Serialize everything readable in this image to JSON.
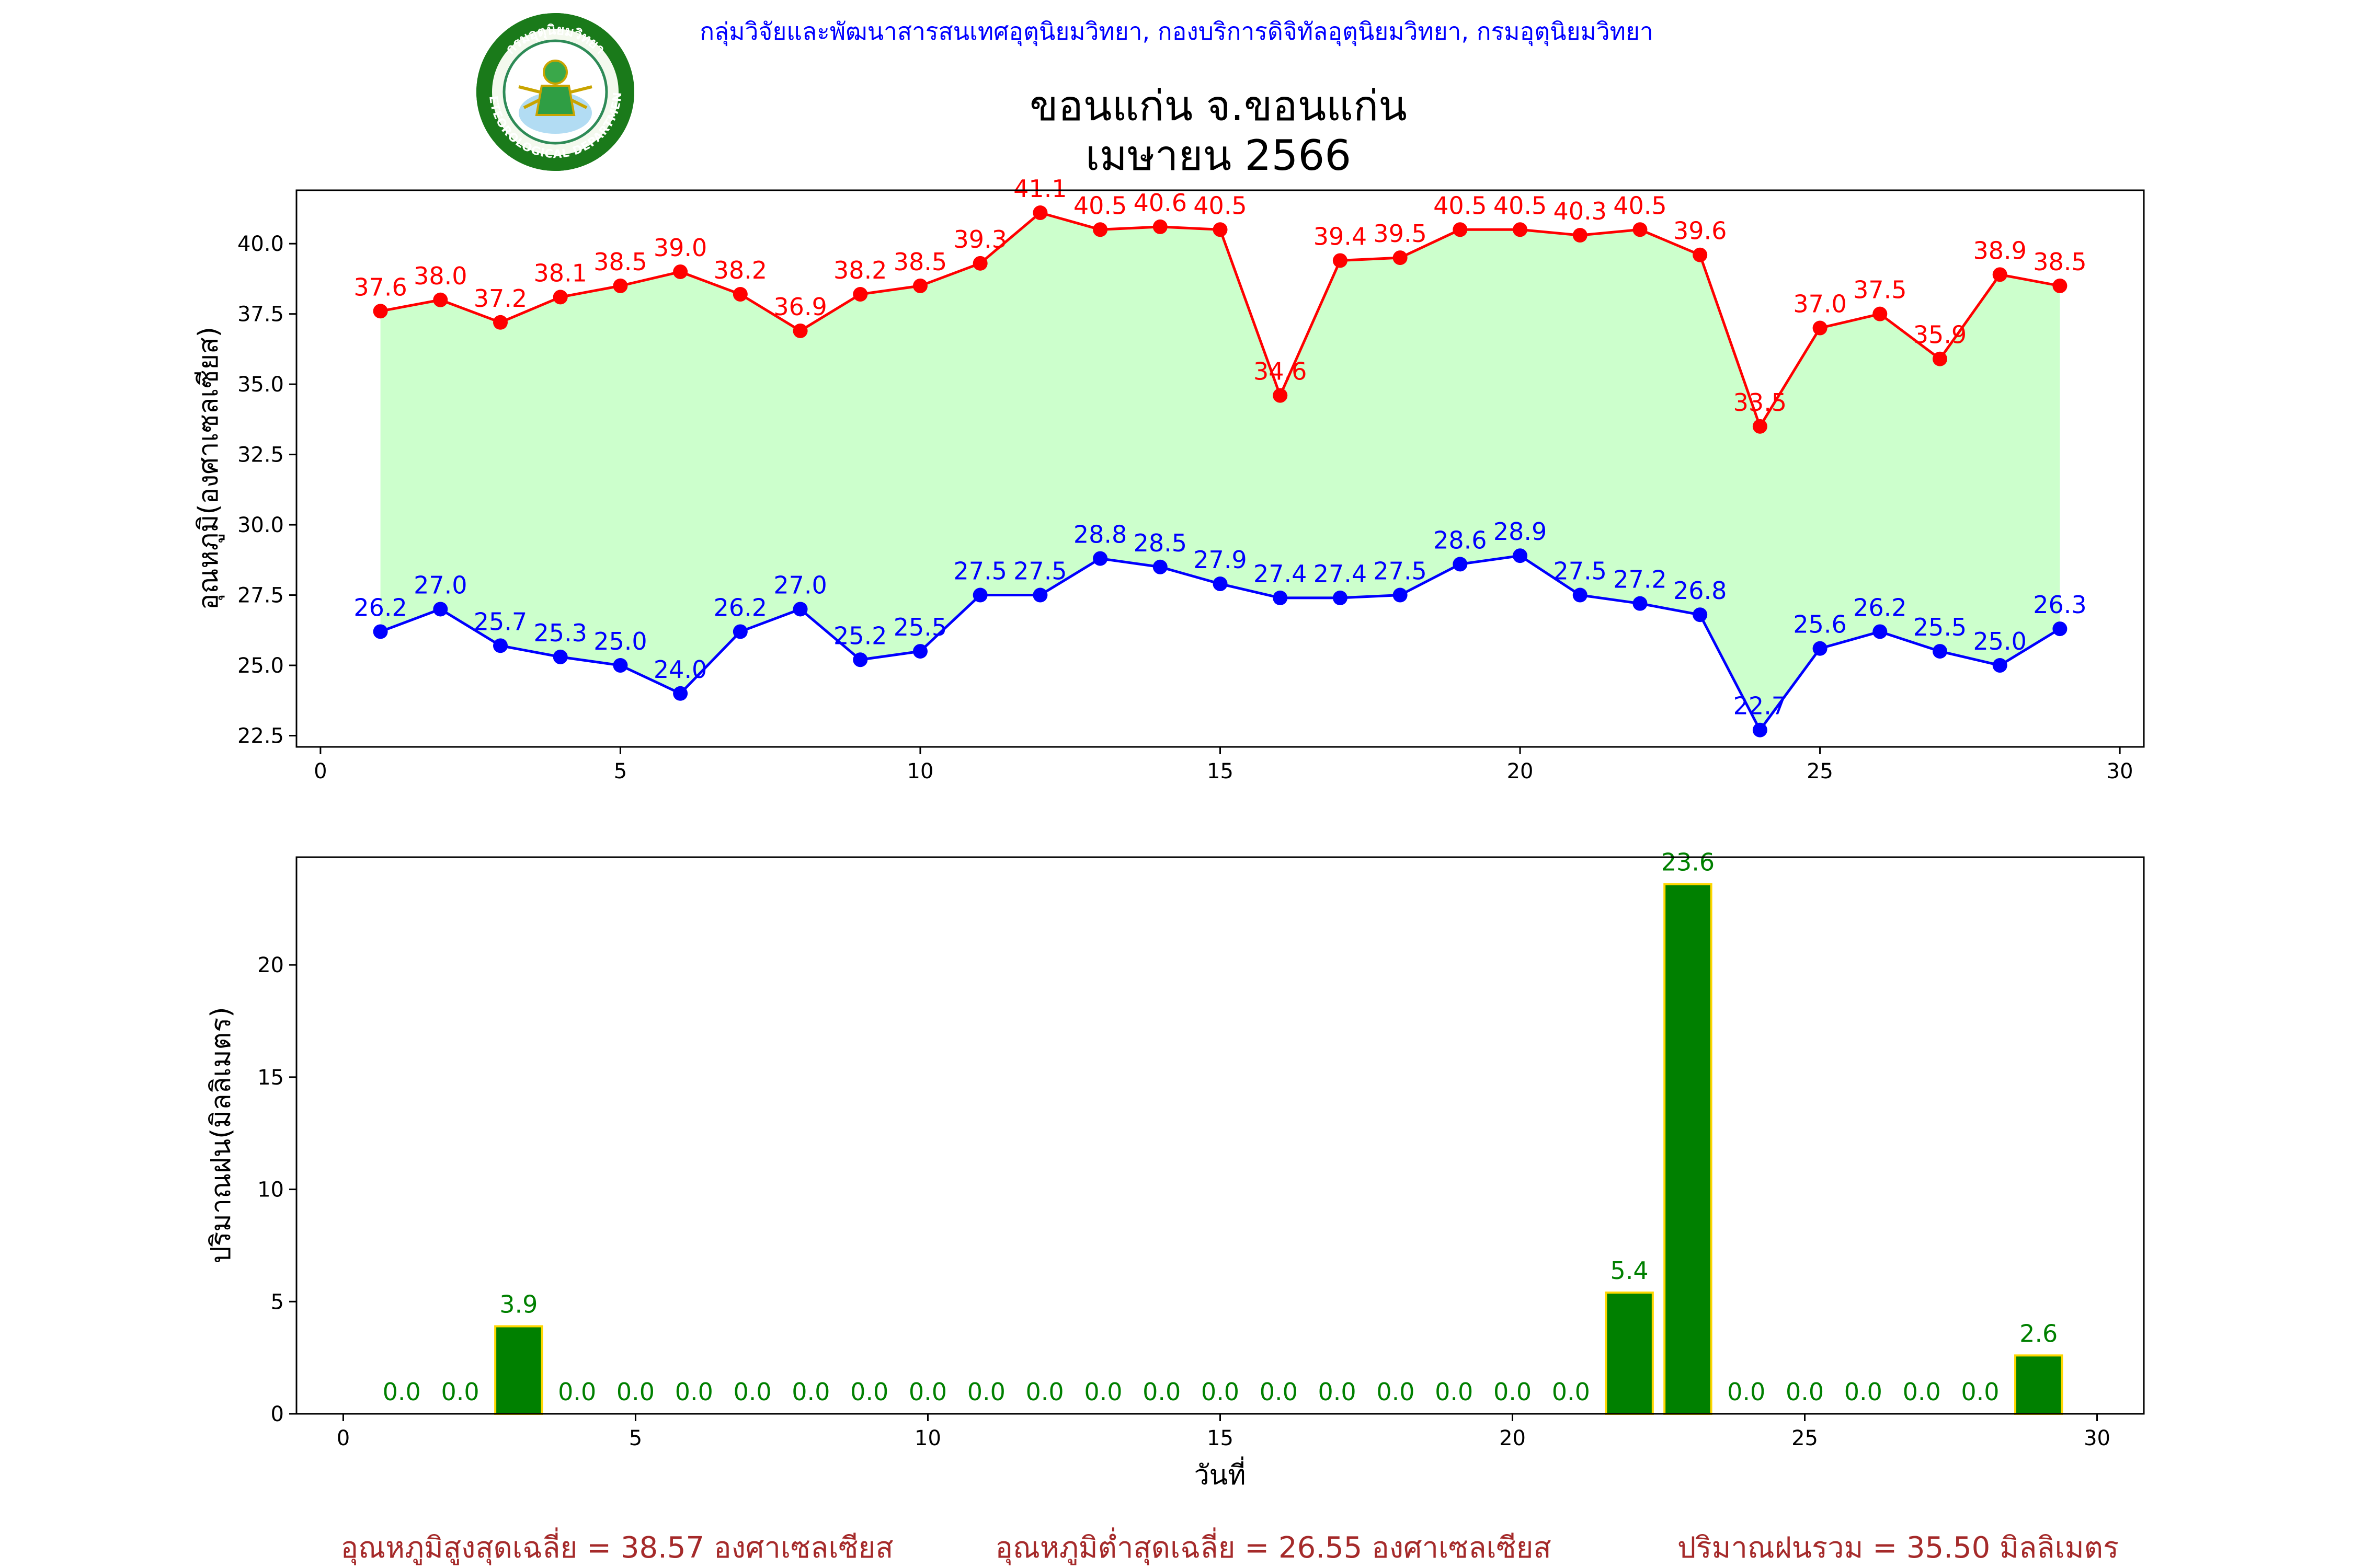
{
  "header": {
    "agency_line": "กลุ่มวิจัยและพัฒนาสารสนเทศอุตุนิยมวิทยา, กองบริการดิจิทัลอุตุนิยมวิทยา, กรมอุตุนิยมวิทยา",
    "title_line1": "ขอนแก่น จ.ขอนแก่น",
    "title_line2": "เมษายน 2566",
    "logo": {
      "inner_text": "กรมอุตุนิยมวิทยา",
      "ring_text": "METEOROLOGICAL DEPARTMENT"
    }
  },
  "colors": {
    "max_temp": "#ff0000",
    "min_temp": "#0000ff",
    "temp_fill": "#ccffcc",
    "rain_bar": "#008000",
    "rain_edge": "#ffd700",
    "rain_label": "#008000",
    "agency_text": "#0000ff",
    "summary_text": "#a52a2a"
  },
  "chart_data": [
    {
      "type": "line",
      "ylabel": "อุณหภูมิ(องศาเซลเซียส)",
      "xlabel": "",
      "x": [
        1,
        2,
        3,
        4,
        5,
        6,
        7,
        8,
        9,
        10,
        11,
        12,
        13,
        14,
        15,
        16,
        17,
        18,
        19,
        20,
        21,
        22,
        23,
        24,
        25,
        26,
        27,
        28,
        29
      ],
      "series": [
        {
          "role": "max",
          "values": [
            37.6,
            38.0,
            37.2,
            38.1,
            38.5,
            39.0,
            38.2,
            36.9,
            38.2,
            38.5,
            39.3,
            41.1,
            40.5,
            40.6,
            40.5,
            34.6,
            39.4,
            39.5,
            40.5,
            40.5,
            40.3,
            40.5,
            39.6,
            33.5,
            37.0,
            37.5,
            35.9,
            38.9,
            38.5
          ]
        },
        {
          "role": "min",
          "values": [
            26.2,
            27.0,
            25.7,
            25.3,
            25.0,
            24.0,
            26.2,
            27.0,
            25.2,
            25.5,
            27.5,
            27.5,
            28.8,
            28.5,
            27.9,
            27.4,
            27.4,
            27.5,
            28.6,
            28.9,
            27.5,
            27.2,
            26.8,
            22.7,
            25.6,
            26.2,
            25.5,
            25.0,
            26.3
          ]
        }
      ],
      "xlim": [
        -0.4,
        30.4
      ],
      "ylim": [
        22.1,
        41.9
      ],
      "xticks": [
        0,
        5,
        10,
        15,
        20,
        25,
        30
      ],
      "yticks": [
        22.5,
        25.0,
        27.5,
        30.0,
        32.5,
        35.0,
        37.5,
        40.0
      ],
      "fill_between": true,
      "grid": false,
      "legend": "none"
    },
    {
      "type": "bar",
      "ylabel": "ปริมาณฝน(มิลลิเมตร)",
      "xlabel": "วันที่",
      "x": [
        1,
        2,
        3,
        4,
        5,
        6,
        7,
        8,
        9,
        10,
        11,
        12,
        13,
        14,
        15,
        16,
        17,
        18,
        19,
        20,
        21,
        22,
        23,
        24,
        25,
        26,
        27,
        28,
        29
      ],
      "values": [
        0.0,
        0.0,
        3.9,
        0.0,
        0.0,
        0.0,
        0.0,
        0.0,
        0.0,
        0.0,
        0.0,
        0.0,
        0.0,
        0.0,
        0.0,
        0.0,
        0.0,
        0.0,
        0.0,
        0.0,
        0.0,
        5.4,
        23.6,
        0.0,
        0.0,
        0.0,
        0.0,
        0.0,
        2.6
      ],
      "xlim": [
        -0.8,
        30.8
      ],
      "ylim": [
        0,
        24.8
      ],
      "xticks": [
        0,
        5,
        10,
        15,
        20,
        25,
        30
      ],
      "yticks": [
        0,
        5,
        10,
        15,
        20
      ],
      "grid": false,
      "legend": "none"
    }
  ],
  "summary": {
    "avg_max": "อุณหภูมิสูงสุดเฉลี่ย = 38.57 องศาเซลเซียส",
    "avg_min": "อุณหภูมิต่ำสุดเฉลี่ย = 26.55 องศาเซลเซียส",
    "total_rain": "ปริมาณฝนรวม = 35.50 มิลลิเมตร"
  }
}
